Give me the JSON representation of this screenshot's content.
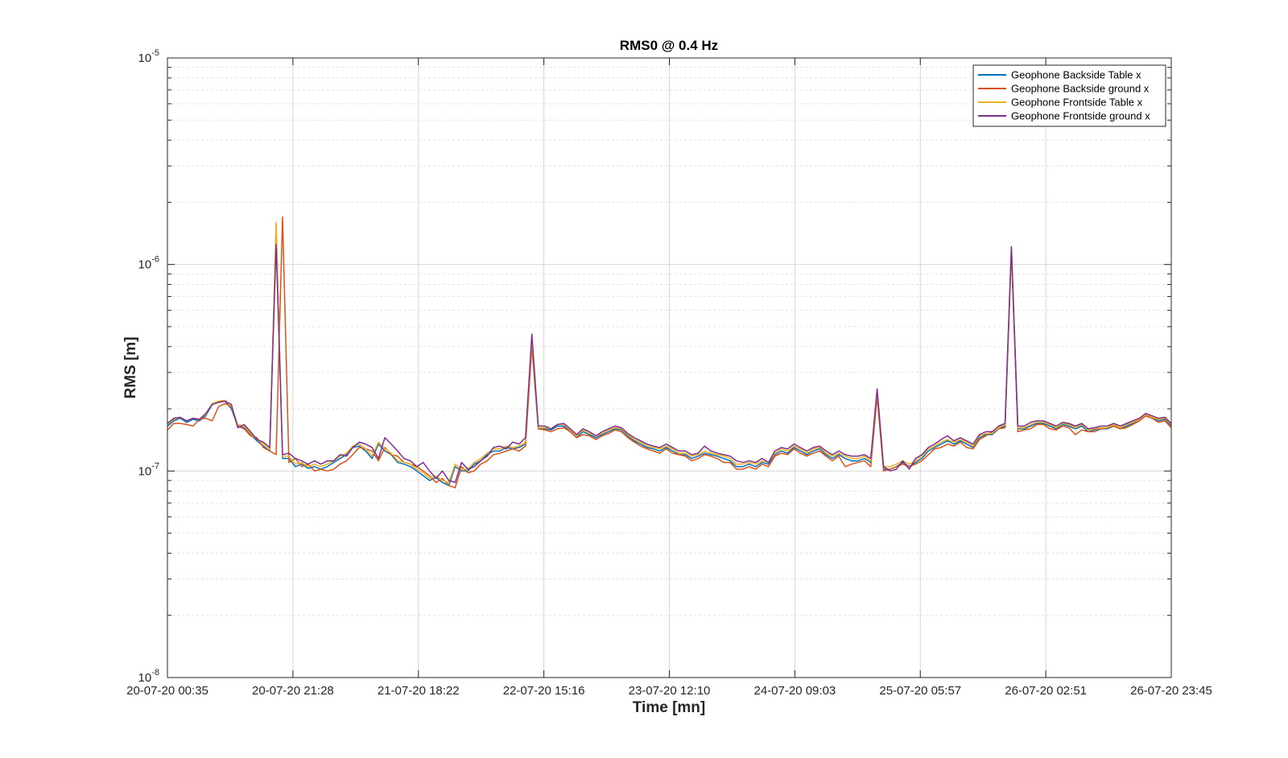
{
  "chart_data": {
    "type": "line",
    "title": "RMS0 @ 0.4 Hz",
    "xlabel": "Time [mn]",
    "ylabel": "RMS [m]",
    "yscale": "log",
    "ylim": [
      1e-08,
      1e-05
    ],
    "y_ticks": [
      {
        "value": 1e-08,
        "base": "10",
        "exp": "-8"
      },
      {
        "value": 1e-07,
        "base": "10",
        "exp": "-7"
      },
      {
        "value": 1e-06,
        "base": "10",
        "exp": "-6"
      },
      {
        "value": 1e-05,
        "base": "10",
        "exp": "-5"
      }
    ],
    "x_tick_labels": [
      "20-07-20 00:35",
      "20-07-20 21:28",
      "21-07-20 18:22",
      "22-07-20 15:16",
      "23-07-20 12:10",
      "24-07-20 09:03",
      "25-07-20 05:57",
      "26-07-20 02:51",
      "26-07-20 23:45"
    ],
    "grid": true,
    "legend_position": "top-right",
    "series": [
      {
        "name": "Geophone Backside Table x",
        "color": "#0072BD",
        "values": [
          1.65e-07,
          1.75e-07,
          1.8e-07,
          1.72e-07,
          1.78e-07,
          1.75e-07,
          1.85e-07,
          2.1e-07,
          2.15e-07,
          2.18e-07,
          2e-07,
          1.65e-07,
          1.62e-07,
          1.5e-07,
          1.4e-07,
          1.32e-07,
          1.25e-07,
          1.55e-06,
          1.15e-07,
          1.15e-07,
          1.05e-07,
          1.08e-07,
          1.03e-07,
          1.05e-07,
          1.02e-07,
          1.05e-07,
          1.1e-07,
          1.15e-07,
          1.2e-07,
          1.3e-07,
          1.32e-07,
          1.25e-07,
          1.15e-07,
          1.35e-07,
          1.25e-07,
          1.2e-07,
          1.1e-07,
          1.08e-07,
          1.05e-07,
          1e-07,
          9.5e-08,
          9e-08,
          9.3e-08,
          8.8e-08,
          8.5e-08,
          1.05e-07,
          1e-07,
          1e-07,
          1.08e-07,
          1.12e-07,
          1.2e-07,
          1.25e-07,
          1.25e-07,
          1.3e-07,
          1.28e-07,
          1.3e-07,
          1.35e-07,
          4.2e-07,
          1.6e-07,
          1.6e-07,
          1.58e-07,
          1.65e-07,
          1.65e-07,
          1.55e-07,
          1.45e-07,
          1.55e-07,
          1.5e-07,
          1.45e-07,
          1.5e-07,
          1.55e-07,
          1.6e-07,
          1.58e-07,
          1.48e-07,
          1.4e-07,
          1.35e-07,
          1.3e-07,
          1.28e-07,
          1.25e-07,
          1.3e-07,
          1.25e-07,
          1.2e-07,
          1.2e-07,
          1.15e-07,
          1.18e-07,
          1.22e-07,
          1.2e-07,
          1.18e-07,
          1.15e-07,
          1.12e-07,
          1.05e-07,
          1.05e-07,
          1.08e-07,
          1.05e-07,
          1.1e-07,
          1.08e-07,
          1.2e-07,
          1.25e-07,
          1.22e-07,
          1.3e-07,
          1.25e-07,
          1.2e-07,
          1.25e-07,
          1.28e-07,
          1.2e-07,
          1.15e-07,
          1.2e-07,
          1.15e-07,
          1.12e-07,
          1.12e-07,
          1.15e-07,
          1.1e-07,
          2.4e-07,
          1.02e-07,
          1.02e-07,
          1.05e-07,
          1.1e-07,
          1.05e-07,
          1.1e-07,
          1.15e-07,
          1.25e-07,
          1.3e-07,
          1.35e-07,
          1.4e-07,
          1.35e-07,
          1.4e-07,
          1.35e-07,
          1.3e-07,
          1.45e-07,
          1.5e-07,
          1.5e-07,
          1.6e-07,
          1.65e-07,
          1.2e-06,
          1.6e-07,
          1.6e-07,
          1.65e-07,
          1.7e-07,
          1.7e-07,
          1.65e-07,
          1.6e-07,
          1.68e-07,
          1.65e-07,
          1.6e-07,
          1.65e-07,
          1.55e-07,
          1.58e-07,
          1.6e-07,
          1.6e-07,
          1.65e-07,
          1.6e-07,
          1.65e-07,
          1.7e-07,
          1.75e-07,
          1.85e-07,
          1.8e-07,
          1.75e-07,
          1.78e-07,
          1.65e-07
        ]
      },
      {
        "name": "Geophone Backside ground x",
        "color": "#D95319",
        "values": [
          1.58e-07,
          1.7e-07,
          1.7e-07,
          1.68e-07,
          1.65e-07,
          1.78e-07,
          1.8e-07,
          1.75e-07,
          2.05e-07,
          2.12e-07,
          2.05e-07,
          1.65e-07,
          1.6e-07,
          1.48e-07,
          1.45e-07,
          1.3e-07,
          1.25e-07,
          1.2e-07,
          1.7e-06,
          1.1e-07,
          1.15e-07,
          1.05e-07,
          1.08e-07,
          1e-07,
          1.02e-07,
          1e-07,
          1.02e-07,
          1.08e-07,
          1.12e-07,
          1.2e-07,
          1.3e-07,
          1.28e-07,
          1.25e-07,
          1.12e-07,
          1.3e-07,
          1.2e-07,
          1.18e-07,
          1.1e-07,
          1.08e-07,
          1.05e-07,
          1e-07,
          9.5e-08,
          8.8e-08,
          9.2e-08,
          8.5e-08,
          8.3e-08,
          1.05e-07,
          9.8e-08,
          1e-07,
          1.08e-07,
          1.12e-07,
          1.2e-07,
          1.22e-07,
          1.25e-07,
          1.28e-07,
          1.25e-07,
          1.32e-07,
          4e-07,
          1.6e-07,
          1.58e-07,
          1.55e-07,
          1.6e-07,
          1.62e-07,
          1.55e-07,
          1.45e-07,
          1.5e-07,
          1.48e-07,
          1.42e-07,
          1.48e-07,
          1.52e-07,
          1.58e-07,
          1.55e-07,
          1.45e-07,
          1.38e-07,
          1.32e-07,
          1.28e-07,
          1.25e-07,
          1.22e-07,
          1.28e-07,
          1.22e-07,
          1.2e-07,
          1.18e-07,
          1.12e-07,
          1.15e-07,
          1.2e-07,
          1.18e-07,
          1.15e-07,
          1.1e-07,
          1.1e-07,
          1.02e-07,
          1.02e-07,
          1.05e-07,
          1.02e-07,
          1.08e-07,
          1.05e-07,
          1.18e-07,
          1.22e-07,
          1.2e-07,
          1.28e-07,
          1.22e-07,
          1.18e-07,
          1.22e-07,
          1.25e-07,
          1.18e-07,
          1.12e-07,
          1.18e-07,
          1.05e-07,
          1.08e-07,
          1.1e-07,
          1.12e-07,
          1.05e-07,
          2.3e-07,
          1e-07,
          1.02e-07,
          1.05e-07,
          1.08e-07,
          1.05e-07,
          1.08e-07,
          1.12e-07,
          1.2e-07,
          1.28e-07,
          1.3e-07,
          1.35e-07,
          1.32e-07,
          1.38e-07,
          1.3e-07,
          1.28e-07,
          1.42e-07,
          1.48e-07,
          1.55e-07,
          1.6e-07,
          1.62e-07,
          1.15e-06,
          1.55e-07,
          1.58e-07,
          1.6e-07,
          1.68e-07,
          1.68e-07,
          1.6e-07,
          1.58e-07,
          1.65e-07,
          1.62e-07,
          1.5e-07,
          1.58e-07,
          1.55e-07,
          1.55e-07,
          1.6e-07,
          1.62e-07,
          1.65e-07,
          1.6e-07,
          1.62e-07,
          1.68e-07,
          1.75e-07,
          1.85e-07,
          1.8e-07,
          1.72e-07,
          1.75e-07,
          1.62e-07
        ]
      },
      {
        "name": "Geophone Frontside Table x",
        "color": "#EDB120",
        "values": [
          1.68e-07,
          1.78e-07,
          1.82e-07,
          1.75e-07,
          1.8e-07,
          1.78e-07,
          1.88e-07,
          2.12e-07,
          2.18e-07,
          2.2e-07,
          2.05e-07,
          1.68e-07,
          1.65e-07,
          1.52e-07,
          1.42e-07,
          1.35e-07,
          1.28e-07,
          1.6e-06,
          1.18e-07,
          1.18e-07,
          1.08e-07,
          1.1e-07,
          1.05e-07,
          1.08e-07,
          1.05e-07,
          1.08e-07,
          1.12e-07,
          1.18e-07,
          1.22e-07,
          1.32e-07,
          1.35e-07,
          1.28e-07,
          1.18e-07,
          1.38e-07,
          1.28e-07,
          1.22e-07,
          1.12e-07,
          1.1e-07,
          1.08e-07,
          1.02e-07,
          9.8e-08,
          9.2e-08,
          9.5e-08,
          9e-08,
          8.8e-08,
          1.08e-07,
          1.02e-07,
          1.02e-07,
          1.1e-07,
          1.15e-07,
          1.22e-07,
          1.28e-07,
          1.28e-07,
          1.32e-07,
          1.3e-07,
          1.32e-07,
          1.38e-07,
          4.4e-07,
          1.62e-07,
          1.62e-07,
          1.6e-07,
          1.68e-07,
          1.68e-07,
          1.58e-07,
          1.48e-07,
          1.58e-07,
          1.52e-07,
          1.48e-07,
          1.52e-07,
          1.58e-07,
          1.62e-07,
          1.6e-07,
          1.5e-07,
          1.42e-07,
          1.38e-07,
          1.32e-07,
          1.3e-07,
          1.28e-07,
          1.32e-07,
          1.28e-07,
          1.22e-07,
          1.22e-07,
          1.18e-07,
          1.2e-07,
          1.25e-07,
          1.22e-07,
          1.2e-07,
          1.18e-07,
          1.15e-07,
          1.08e-07,
          1.08e-07,
          1.1e-07,
          1.08e-07,
          1.12e-07,
          1.1e-07,
          1.22e-07,
          1.28e-07,
          1.25e-07,
          1.32e-07,
          1.28e-07,
          1.22e-07,
          1.28e-07,
          1.3e-07,
          1.22e-07,
          1.18e-07,
          1.22e-07,
          1.18e-07,
          1.15e-07,
          1.15e-07,
          1.18e-07,
          1.12e-07,
          2.45e-07,
          1.05e-07,
          1.05e-07,
          1.08e-07,
          1.12e-07,
          1.08e-07,
          1.12e-07,
          1.18e-07,
          1.28e-07,
          1.32e-07,
          1.38e-07,
          1.42e-07,
          1.38e-07,
          1.42e-07,
          1.38e-07,
          1.32e-07,
          1.48e-07,
          1.52e-07,
          1.52e-07,
          1.62e-07,
          1.68e-07,
          1.2e-06,
          1.62e-07,
          1.62e-07,
          1.68e-07,
          1.72e-07,
          1.72e-07,
          1.68e-07,
          1.62e-07,
          1.7e-07,
          1.68e-07,
          1.62e-07,
          1.68e-07,
          1.58e-07,
          1.6e-07,
          1.62e-07,
          1.62e-07,
          1.68e-07,
          1.62e-07,
          1.68e-07,
          1.72e-07,
          1.78e-07,
          1.88e-07,
          1.82e-07,
          1.78e-07,
          1.8e-07,
          1.68e-07
        ]
      },
      {
        "name": "Geophone Frontside ground x",
        "color": "#7E2F8E",
        "values": [
          1.7e-07,
          1.8e-07,
          1.82e-07,
          1.75e-07,
          1.8e-07,
          1.78e-07,
          1.9e-07,
          2.1e-07,
          2.15e-07,
          2.18e-07,
          2.1e-07,
          1.62e-07,
          1.68e-07,
          1.55e-07,
          1.42e-07,
          1.38e-07,
          1.3e-07,
          1.25e-06,
          1.2e-07,
          1.22e-07,
          1.15e-07,
          1.12e-07,
          1.08e-07,
          1.12e-07,
          1.08e-07,
          1.12e-07,
          1.12e-07,
          1.2e-07,
          1.18e-07,
          1.3e-07,
          1.38e-07,
          1.35e-07,
          1.3e-07,
          1.15e-07,
          1.45e-07,
          1.35e-07,
          1.25e-07,
          1.15e-07,
          1.12e-07,
          1.05e-07,
          1.1e-07,
          1e-07,
          9.2e-08,
          1e-07,
          9e-08,
          8.8e-08,
          1.1e-07,
          1.02e-07,
          1.05e-07,
          1.12e-07,
          1.18e-07,
          1.3e-07,
          1.32e-07,
          1.28e-07,
          1.38e-07,
          1.35e-07,
          1.45e-07,
          4.6e-07,
          1.65e-07,
          1.65e-07,
          1.6e-07,
          1.68e-07,
          1.7e-07,
          1.6e-07,
          1.5e-07,
          1.6e-07,
          1.55e-07,
          1.48e-07,
          1.55e-07,
          1.6e-07,
          1.65e-07,
          1.62e-07,
          1.52e-07,
          1.45e-07,
          1.4e-07,
          1.35e-07,
          1.32e-07,
          1.3e-07,
          1.35e-07,
          1.3e-07,
          1.25e-07,
          1.25e-07,
          1.2e-07,
          1.22e-07,
          1.32e-07,
          1.25e-07,
          1.22e-07,
          1.2e-07,
          1.18e-07,
          1.12e-07,
          1.1e-07,
          1.12e-07,
          1.1e-07,
          1.15e-07,
          1.1e-07,
          1.25e-07,
          1.3e-07,
          1.28e-07,
          1.35e-07,
          1.3e-07,
          1.25e-07,
          1.3e-07,
          1.32e-07,
          1.25e-07,
          1.2e-07,
          1.25e-07,
          1.2e-07,
          1.18e-07,
          1.18e-07,
          1.2e-07,
          1.15e-07,
          2.5e-07,
          1.05e-07,
          1e-07,
          1.02e-07,
          1.12e-07,
          1.02e-07,
          1.15e-07,
          1.2e-07,
          1.3e-07,
          1.35e-07,
          1.42e-07,
          1.48e-07,
          1.4e-07,
          1.45e-07,
          1.4e-07,
          1.35e-07,
          1.5e-07,
          1.55e-07,
          1.55e-07,
          1.65e-07,
          1.7e-07,
          1.22e-06,
          1.65e-07,
          1.65e-07,
          1.72e-07,
          1.75e-07,
          1.75e-07,
          1.7e-07,
          1.65e-07,
          1.72e-07,
          1.7e-07,
          1.65e-07,
          1.7e-07,
          1.6e-07,
          1.62e-07,
          1.65e-07,
          1.65e-07,
          1.7e-07,
          1.65e-07,
          1.7e-07,
          1.75e-07,
          1.8e-07,
          1.9e-07,
          1.85e-07,
          1.8e-07,
          1.82e-07,
          1.7e-07
        ]
      }
    ]
  }
}
